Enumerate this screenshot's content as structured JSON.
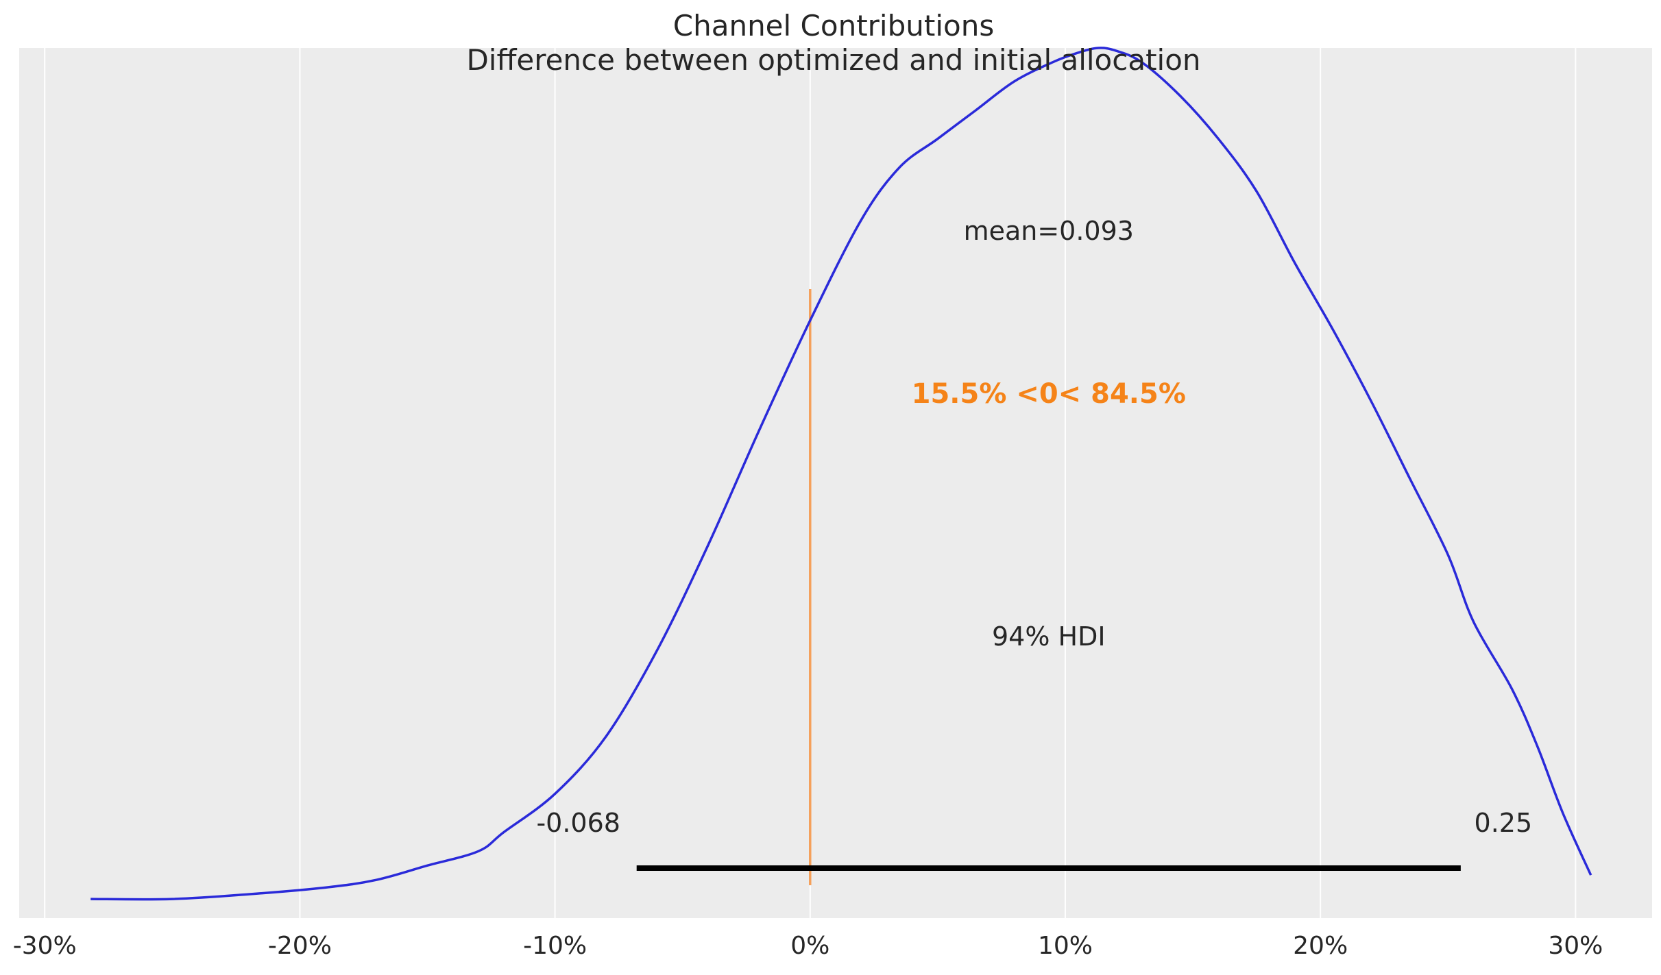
{
  "chart_data": {
    "type": "kde",
    "title": "Channel Contributions",
    "subtitle": "Difference between optimized and initial allocation",
    "xlabel": "",
    "ylabel": "",
    "xlim": [
      -0.31,
      0.33
    ],
    "ylim": [
      -0.2,
      8.9
    ],
    "grid": "vertical",
    "x_ticks": [
      -0.3,
      -0.2,
      -0.1,
      0.0,
      0.1,
      0.2,
      0.3
    ],
    "x_tick_labels": [
      "-30%",
      "-20%",
      "-10%",
      "0%",
      "10%",
      "20%",
      "30%"
    ],
    "density": {
      "x": [
        -0.282,
        -0.25,
        -0.22,
        -0.19,
        -0.17,
        -0.15,
        -0.13,
        -0.12,
        -0.1,
        -0.08,
        -0.06,
        -0.04,
        -0.02,
        0.0,
        0.02,
        0.035,
        0.05,
        0.065,
        0.08,
        0.095,
        0.105,
        0.113,
        0.12,
        0.13,
        0.145,
        0.16,
        0.175,
        0.19,
        0.205,
        0.22,
        0.235,
        0.25,
        0.26,
        0.275,
        0.285,
        0.295,
        0.306
      ],
      "y": [
        0.0,
        0.0,
        0.05,
        0.12,
        0.2,
        0.35,
        0.5,
        0.7,
        1.1,
        1.7,
        2.6,
        3.7,
        4.9,
        6.05,
        7.1,
        7.65,
        7.95,
        8.25,
        8.55,
        8.75,
        8.85,
        8.9,
        8.87,
        8.75,
        8.4,
        7.95,
        7.4,
        6.65,
        5.95,
        5.2,
        4.4,
        3.6,
        2.9,
        2.2,
        1.6,
        0.9,
        0.25
      ]
    },
    "mean": 0.093,
    "mean_label": "mean=0.093",
    "ref_val": 0.0,
    "ref_label": "15.5% <0< 84.5%",
    "hdi_prob_label": "94% HDI",
    "hdi": [
      -0.068,
      0.255
    ],
    "hdi_labels": [
      "-0.068",
      "0.25"
    ],
    "colors": {
      "kde": "#2a2ad9",
      "ref_line": "#f5a05a",
      "ref_text": "#f58318",
      "hdi": "#000000",
      "background": "#ececec",
      "grid": "#ffffff"
    }
  }
}
